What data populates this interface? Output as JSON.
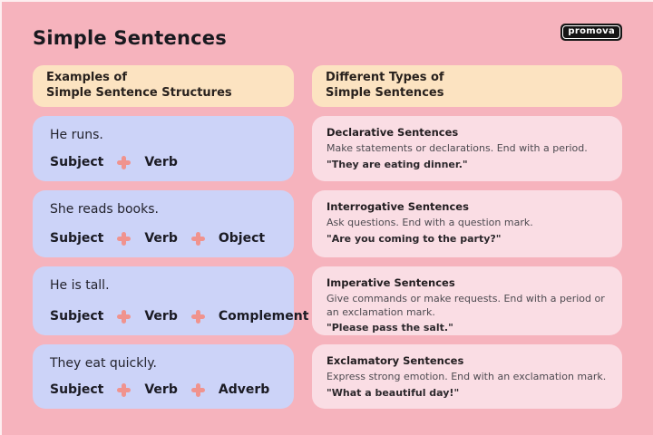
{
  "page": {
    "title": "Simple Sentences",
    "logo_text": "promova"
  },
  "left_column": {
    "header_line1": "Examples of",
    "header_line2": "Simple Sentence Structures",
    "examples": [
      {
        "sentence": "He runs.",
        "parts": [
          "Subject",
          "Verb"
        ]
      },
      {
        "sentence": "She reads books.",
        "parts": [
          "Subject",
          "Verb",
          "Object"
        ]
      },
      {
        "sentence": "He is tall.",
        "parts": [
          "Subject",
          "Verb",
          "Complement"
        ]
      },
      {
        "sentence": "They eat quickly.",
        "parts": [
          "Subject",
          "Verb",
          "Adverb"
        ]
      }
    ]
  },
  "right_column": {
    "header_line1": "Different Types of",
    "header_line2": "Simple Sentences",
    "types": [
      {
        "title": "Declarative Sentences",
        "description": "Make statements or declarations. End with a period.",
        "example": "\"They are eating dinner.\""
      },
      {
        "title": "Interrogative Sentences",
        "description": "Ask questions. End with a question mark.",
        "example": "\"Are you coming to the party?\""
      },
      {
        "title": "Imperative Sentences",
        "description": "Give commands or make requests. End with a period or an exclamation mark.",
        "example": "\"Please pass the salt.\""
      },
      {
        "title": "Exclamatory Sentences",
        "description": "Express strong emotion. End with an exclamation mark.",
        "example": "\"What a beautiful day!\""
      }
    ]
  },
  "icons": {
    "plus": "plus-icon"
  },
  "colors": {
    "background": "#f6b3bd",
    "header_box": "#fce3c1",
    "example_box": "#ccd3f8",
    "type_box": "#fadde4",
    "plus_accent": "#f0938e",
    "text_dark": "#1c1c24",
    "logo_bg": "#151515",
    "logo_text": "#ffffff"
  }
}
